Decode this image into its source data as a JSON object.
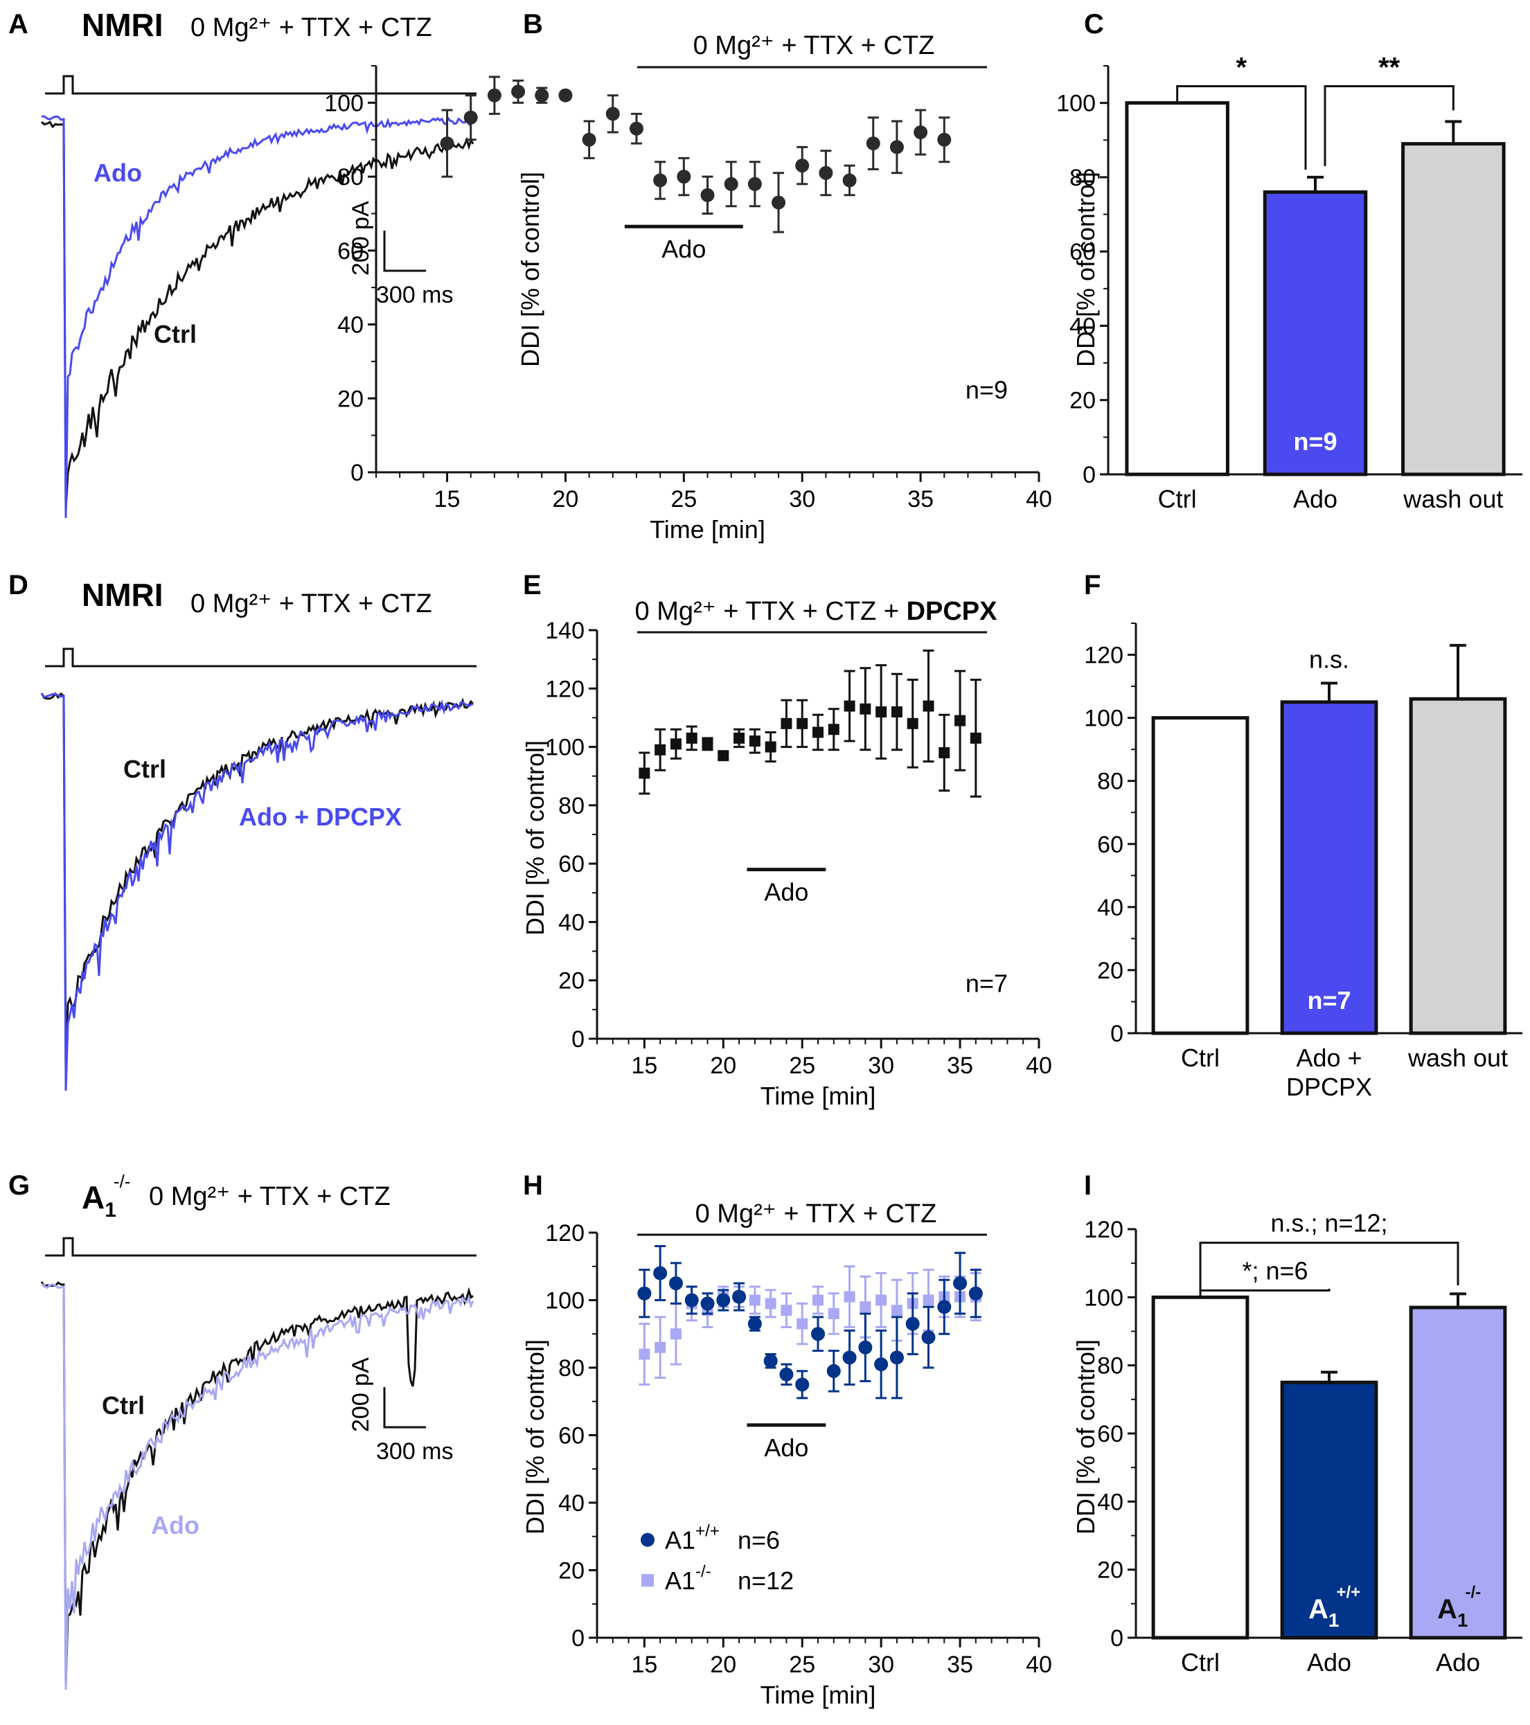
{
  "colors": {
    "black": "#111111",
    "blue": "#4a4af0",
    "grey": "#d2d3d2",
    "navy": "#00338a",
    "lilac": "#a8a8f4",
    "marker": "#2b2b2b"
  },
  "panels": {
    "A": {
      "label": "A",
      "strain": "NMRI",
      "condition": "0 Mg²⁺ + TTX + CTZ",
      "trace1": "Ado",
      "trace2": "Ctrl",
      "scale_y": "200 pA",
      "scale_x": "300 ms"
    },
    "D": {
      "label": "D",
      "strain": "NMRI",
      "condition": "0 Mg²⁺ + TTX + CTZ",
      "trace1": "Ctrl",
      "trace2": "Ado + DPCPX"
    },
    "G": {
      "label": "G",
      "strain": "A",
      "strain_sub": "1",
      "strain_sup": "-/-",
      "condition": "0 Mg²⁺ + TTX + CTZ",
      "trace1": "Ctrl",
      "trace2": "Ado",
      "scale_y": "200 pA",
      "scale_x": "300 ms"
    }
  },
  "chart_data": [
    {
      "id": "B",
      "type": "scatter",
      "panel_label": "B",
      "title": "0 Mg²⁺ + TTX + CTZ",
      "xlabel": "Time [min]",
      "ylabel": "DDI [% of control]",
      "xlim": [
        12,
        40
      ],
      "ylim": [
        0,
        110
      ],
      "xticks": [
        15,
        20,
        25,
        30,
        35,
        40
      ],
      "yticks": [
        0,
        20,
        40,
        60,
        80,
        100
      ],
      "drug_bar": {
        "label": "Ado",
        "x": [
          22.5,
          27.5
        ]
      },
      "n_label": "n=9",
      "series": [
        {
          "name": "NMRI",
          "marker": "circle",
          "color": "#2b2b2b",
          "x": [
            15,
            16,
            17,
            18,
            19,
            20,
            21,
            22,
            23,
            24,
            25,
            26,
            27,
            28,
            29,
            30,
            31,
            32,
            33,
            34,
            35,
            36
          ],
          "y": [
            89,
            96,
            102,
            103,
            102,
            102,
            90,
            97,
            93,
            79,
            80,
            75,
            78,
            78,
            73,
            83,
            81,
            79,
            89,
            88,
            92,
            90
          ],
          "err": [
            9,
            6,
            5,
            3,
            2,
            1,
            5,
            5,
            4,
            5,
            5,
            5,
            6,
            6,
            8,
            5,
            6,
            4,
            7,
            7,
            6,
            6
          ]
        }
      ]
    },
    {
      "id": "C",
      "type": "bar",
      "panel_label": "C",
      "ylabel": "DDI [% of control]",
      "categories": [
        "Ctrl",
        "Ado",
        "wash out"
      ],
      "values": [
        100,
        76,
        89
      ],
      "err": [
        0,
        4,
        6
      ],
      "ylim": [
        0,
        110
      ],
      "yticks": [
        0,
        20,
        40,
        60,
        80,
        100
      ],
      "bar_colors": [
        "#ffffff",
        "#4a4af0",
        "#d2d3d2"
      ],
      "n_label": "n=9",
      "significance": [
        {
          "label": "*",
          "from": 0,
          "to": 1
        },
        {
          "label": "**",
          "from": 1,
          "to": 2
        }
      ]
    },
    {
      "id": "E",
      "type": "scatter",
      "panel_label": "E",
      "title_plain": "0 Mg²⁺ + TTX + CTZ + ",
      "title_bold": "DPCPX",
      "xlabel": "Time [min]",
      "ylabel": "DDI [% of control]",
      "xlim": [
        12,
        40
      ],
      "ylim": [
        0,
        140
      ],
      "xticks": [
        15,
        20,
        25,
        30,
        35,
        40
      ],
      "yticks": [
        0,
        20,
        40,
        60,
        80,
        100,
        120,
        140
      ],
      "drug_bar": {
        "label": "Ado",
        "x": [
          21.5,
          26.5
        ]
      },
      "n_label": "n=7",
      "series": [
        {
          "name": "NMRI + DPCPX",
          "marker": "square",
          "color": "#111111",
          "x": [
            15,
            16,
            17,
            18,
            19,
            20,
            21,
            22,
            23,
            24,
            25,
            26,
            27,
            28,
            29,
            30,
            31,
            32,
            33,
            34,
            35,
            36
          ],
          "y": [
            91,
            99,
            101,
            103,
            101,
            97,
            103,
            102,
            100,
            108,
            108,
            105,
            106,
            114,
            113,
            112,
            112,
            108,
            114,
            98,
            109,
            103
          ],
          "err": [
            7,
            7,
            5,
            4,
            2,
            1,
            3,
            4,
            5,
            8,
            8,
            6,
            7,
            12,
            14,
            16,
            13,
            15,
            19,
            13,
            17,
            20
          ]
        }
      ]
    },
    {
      "id": "F",
      "type": "bar",
      "panel_label": "F",
      "categories": [
        "Ctrl",
        "Ado + DPCPX",
        "wash out"
      ],
      "category_lines": [
        [
          "Ctrl"
        ],
        [
          "Ado +",
          "DPCPX"
        ],
        [
          "wash out"
        ]
      ],
      "values": [
        100,
        105,
        106
      ],
      "err": [
        0,
        6,
        17
      ],
      "ylim": [
        0,
        130
      ],
      "yticks": [
        0,
        20,
        40,
        60,
        80,
        100,
        120
      ],
      "bar_colors": [
        "#ffffff",
        "#4a4af0",
        "#d2d3d2"
      ],
      "n_label": "n=7",
      "annotation": "n.s."
    },
    {
      "id": "H",
      "type": "scatter",
      "panel_label": "H",
      "title": "0 Mg²⁺ + TTX + CTZ",
      "xlabel": "Time [min]",
      "ylabel": "DDI [% of control]",
      "xlim": [
        12,
        40
      ],
      "ylim": [
        0,
        120
      ],
      "xticks": [
        15,
        20,
        25,
        30,
        35,
        40
      ],
      "yticks": [
        0,
        20,
        40,
        60,
        80,
        100,
        120
      ],
      "drug_bar": {
        "label": "Ado",
        "x": [
          21.5,
          26.5
        ]
      },
      "series": [
        {
          "name": "A1",
          "sup": "-/-",
          "n": "n=12",
          "marker": "square",
          "color": "#a8a8f4",
          "x": [
            15,
            16,
            17,
            18,
            19,
            20,
            21,
            22,
            23,
            24,
            25,
            26,
            27,
            28,
            29,
            30,
            31,
            32,
            33,
            34,
            35,
            36
          ],
          "y": [
            84,
            86,
            90,
            99,
            97,
            101,
            101,
            100,
            99,
            97,
            93,
            100,
            96,
            101,
            98,
            100,
            97,
            99,
            100,
            101,
            101,
            101
          ],
          "err": [
            9,
            9,
            9,
            5,
            5,
            3,
            3,
            4,
            4,
            5,
            6,
            4,
            6,
            9,
            9,
            8,
            9,
            9,
            9,
            6,
            6,
            7
          ]
        },
        {
          "name": "A1",
          "sup": "+/+",
          "n": "n=6",
          "marker": "circle",
          "color": "#00338a",
          "x": [
            15,
            16,
            17,
            18,
            19,
            20,
            21,
            22,
            23,
            24,
            25,
            26,
            27,
            28,
            29,
            30,
            31,
            32,
            33,
            34,
            35,
            36
          ],
          "y": [
            102,
            108,
            105,
            100,
            99,
            100,
            101,
            93,
            82,
            78,
            75,
            90,
            79,
            83,
            86,
            81,
            83,
            93,
            89,
            98,
            105,
            102
          ],
          "err": [
            7,
            8,
            6,
            4,
            3,
            3,
            4,
            2,
            2,
            3,
            4,
            5,
            6,
            8,
            10,
            10,
            12,
            9,
            9,
            8,
            9,
            7
          ]
        }
      ]
    },
    {
      "id": "I",
      "type": "bar",
      "panel_label": "I",
      "ylabel": "DDI [% of control]",
      "categories": [
        "Ctrl",
        "Ado",
        "Ado"
      ],
      "values": [
        100,
        75,
        97
      ],
      "err": [
        0,
        3,
        4
      ],
      "ylim": [
        0,
        120
      ],
      "yticks": [
        0,
        20,
        40,
        60,
        80,
        100,
        120
      ],
      "bar_colors": [
        "#ffffff",
        "#00338a",
        "#a8a8f4"
      ],
      "bar_labels": [
        null,
        {
          "base": "A",
          "sub": "1",
          "sup": "+/+"
        },
        {
          "base": "A",
          "sub": "1",
          "sup": "-/-"
        }
      ],
      "significance": [
        {
          "label": "*; n=6",
          "from": 0,
          "to": 1
        },
        {
          "label": "n.s.; n=12;",
          "from": 0,
          "to": 2
        }
      ]
    }
  ]
}
